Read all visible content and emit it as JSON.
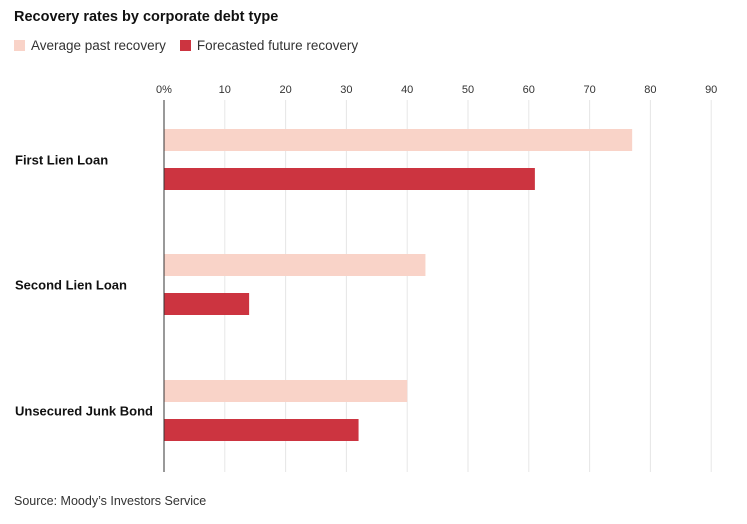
{
  "header": {
    "title": "Recovery rates by corporate debt type",
    "source": "Source: Moody’s Investors Service"
  },
  "colors": {
    "past": "#f9d3c8",
    "future": "#cc3440",
    "grid": "#e6e6e6",
    "axis": "#333333"
  },
  "chart_data": {
    "type": "bar",
    "orientation": "horizontal",
    "title": "Recovery rates by corporate debt type",
    "categories": [
      "First Lien Loan",
      "Second Lien Loan",
      "Unsecured Junk Bond"
    ],
    "series": [
      {
        "name": "Average past recovery",
        "values": [
          77,
          43,
          40
        ]
      },
      {
        "name": "Forecasted future recovery",
        "values": [
          61,
          14,
          32
        ]
      }
    ],
    "xlim": [
      0,
      90
    ],
    "ticks": [
      "0%",
      "10",
      "20",
      "30",
      "40",
      "50",
      "60",
      "70",
      "80",
      "90"
    ],
    "grid": true,
    "legend_position": "top-left"
  }
}
